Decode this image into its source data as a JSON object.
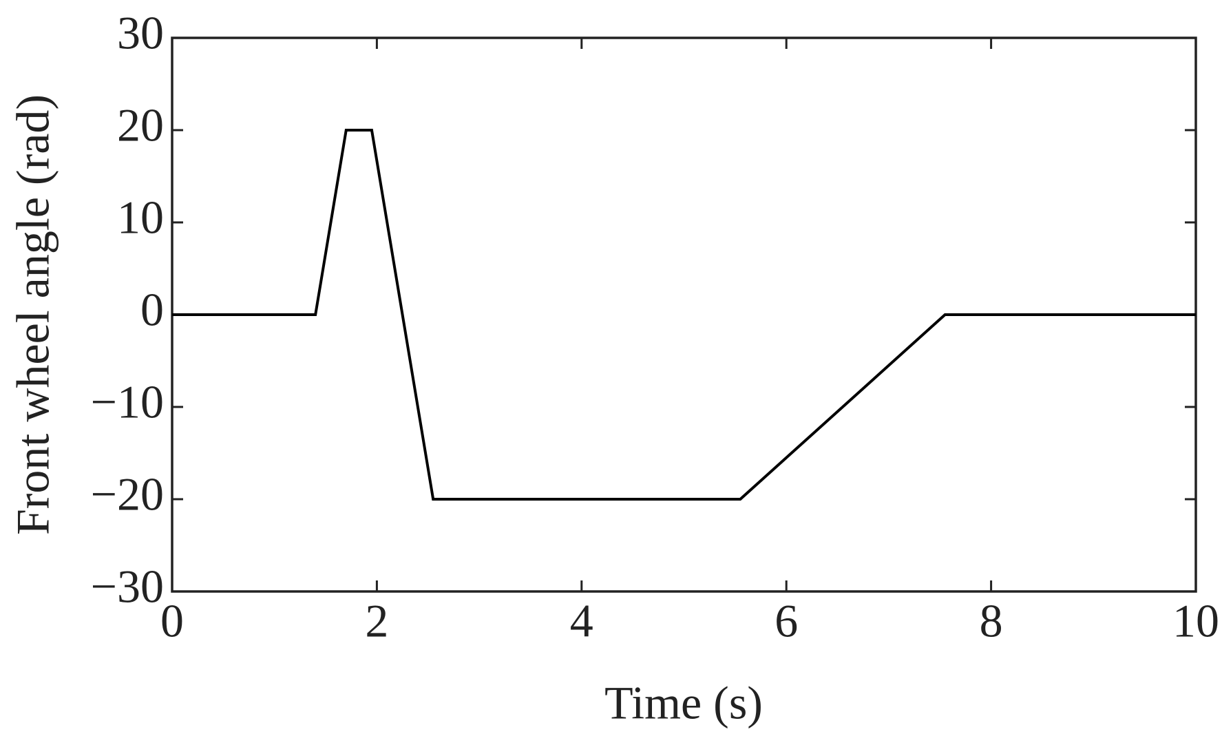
{
  "chart_data": {
    "type": "line",
    "xlabel": "Time (s)",
    "ylabel": "Front wheel angle (rad)",
    "x": [
      0,
      1.4,
      1.7,
      1.95,
      2.55,
      5.55,
      7.55,
      10
    ],
    "series": [
      {
        "color": "#000000",
        "values": [
          0,
          0,
          20,
          20,
          -20,
          -20,
          0,
          0
        ]
      }
    ],
    "xlim": [
      0,
      10
    ],
    "xticks": [
      0,
      2,
      4,
      6,
      8,
      10
    ],
    "ylim": [
      -30,
      30
    ],
    "yticks": [
      {
        "value": -30,
        "label": "−30"
      },
      {
        "value": -20,
        "label": "−20"
      },
      {
        "value": -10,
        "label": "−10"
      },
      0,
      10,
      20,
      30
    ],
    "grid": false
  }
}
